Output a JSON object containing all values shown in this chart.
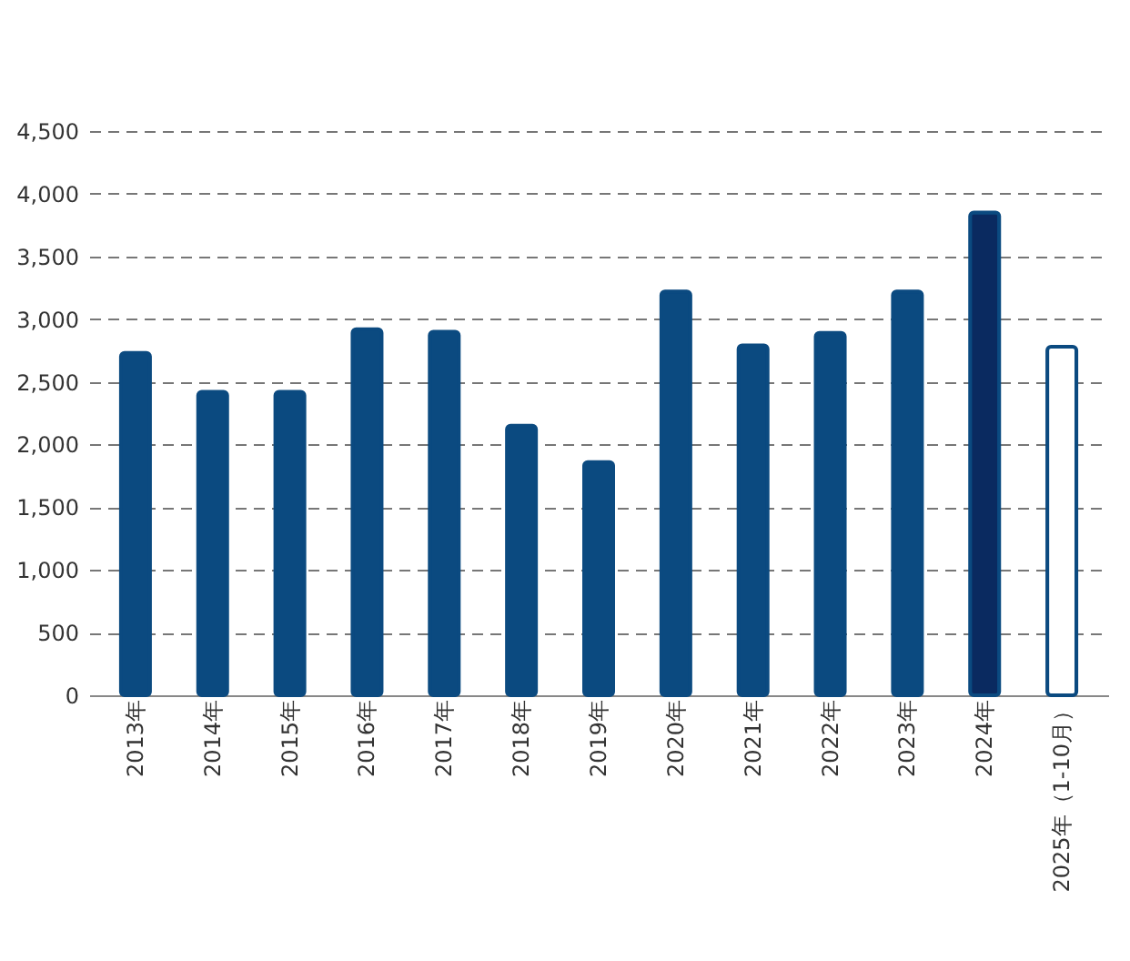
{
  "chart_data": {
    "type": "bar",
    "categories": [
      "2013年",
      "2014年",
      "2015年",
      "2016年",
      "2017年",
      "2018年",
      "2019年",
      "2020年",
      "2021年",
      "2022年",
      "2023年",
      "2024年",
      "2025年（1-10月）"
    ],
    "values": [
      2730,
      2420,
      2420,
      2920,
      2900,
      2150,
      1860,
      3220,
      2790,
      2890,
      3220,
      3850,
      2780
    ],
    "colors": [
      "#0b4a80",
      "#0b4a80",
      "#0b4a80",
      "#0b4a80",
      "#0b4a80",
      "#0b4a80",
      "#0b4a80",
      "#0b4a80",
      "#0b4a80",
      "#0b4a80",
      "#0b4a80",
      "#0a2a60",
      "#ffffff"
    ],
    "color": "#0b4a80",
    "ylim": [
      0,
      4500
    ],
    "yticks": [
      0,
      500,
      {
        "value": 1000,
        "label": "1,000"
      },
      {
        "value": 1500,
        "label": "1,500"
      },
      {
        "value": 2000,
        "label": "2,000"
      },
      {
        "value": 2500,
        "label": "2,500"
      },
      {
        "value": 3000,
        "label": "3,000"
      },
      {
        "value": 3500,
        "label": "3,500"
      },
      {
        "value": 4000,
        "label": "4,000"
      },
      {
        "value": 4500,
        "label": "4,500"
      }
    ],
    "grid": "y",
    "line_style": "dashed"
  }
}
